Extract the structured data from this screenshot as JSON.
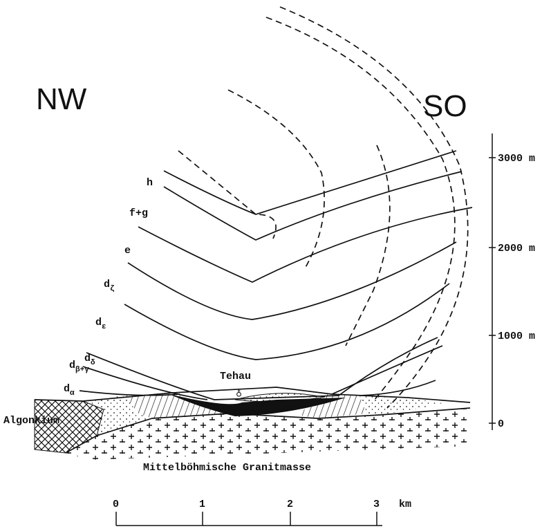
{
  "orientation": {
    "left": "NW",
    "right": "SO"
  },
  "layers": [
    {
      "text": "h"
    },
    {
      "text": "f+g"
    },
    {
      "text": "e"
    },
    {
      "text": "d",
      "sub": "ζ"
    },
    {
      "text": "d",
      "sub": "ε"
    },
    {
      "text": "d",
      "sub": "δ"
    },
    {
      "text": "d",
      "sub": "β+γ"
    },
    {
      "text": "d",
      "sub": "α"
    }
  ],
  "locality": {
    "name": "Tehau",
    "symbol": "♁"
  },
  "units": {
    "left": "Algonkium",
    "bottom": "Mittelböhmische Granitmasse"
  },
  "height_scale": [
    "3000 m",
    "2000 m",
    "1000 m",
    "0"
  ],
  "distance_scale": {
    "ticks": [
      "0",
      "1",
      "2",
      "3"
    ],
    "unit": "km"
  }
}
